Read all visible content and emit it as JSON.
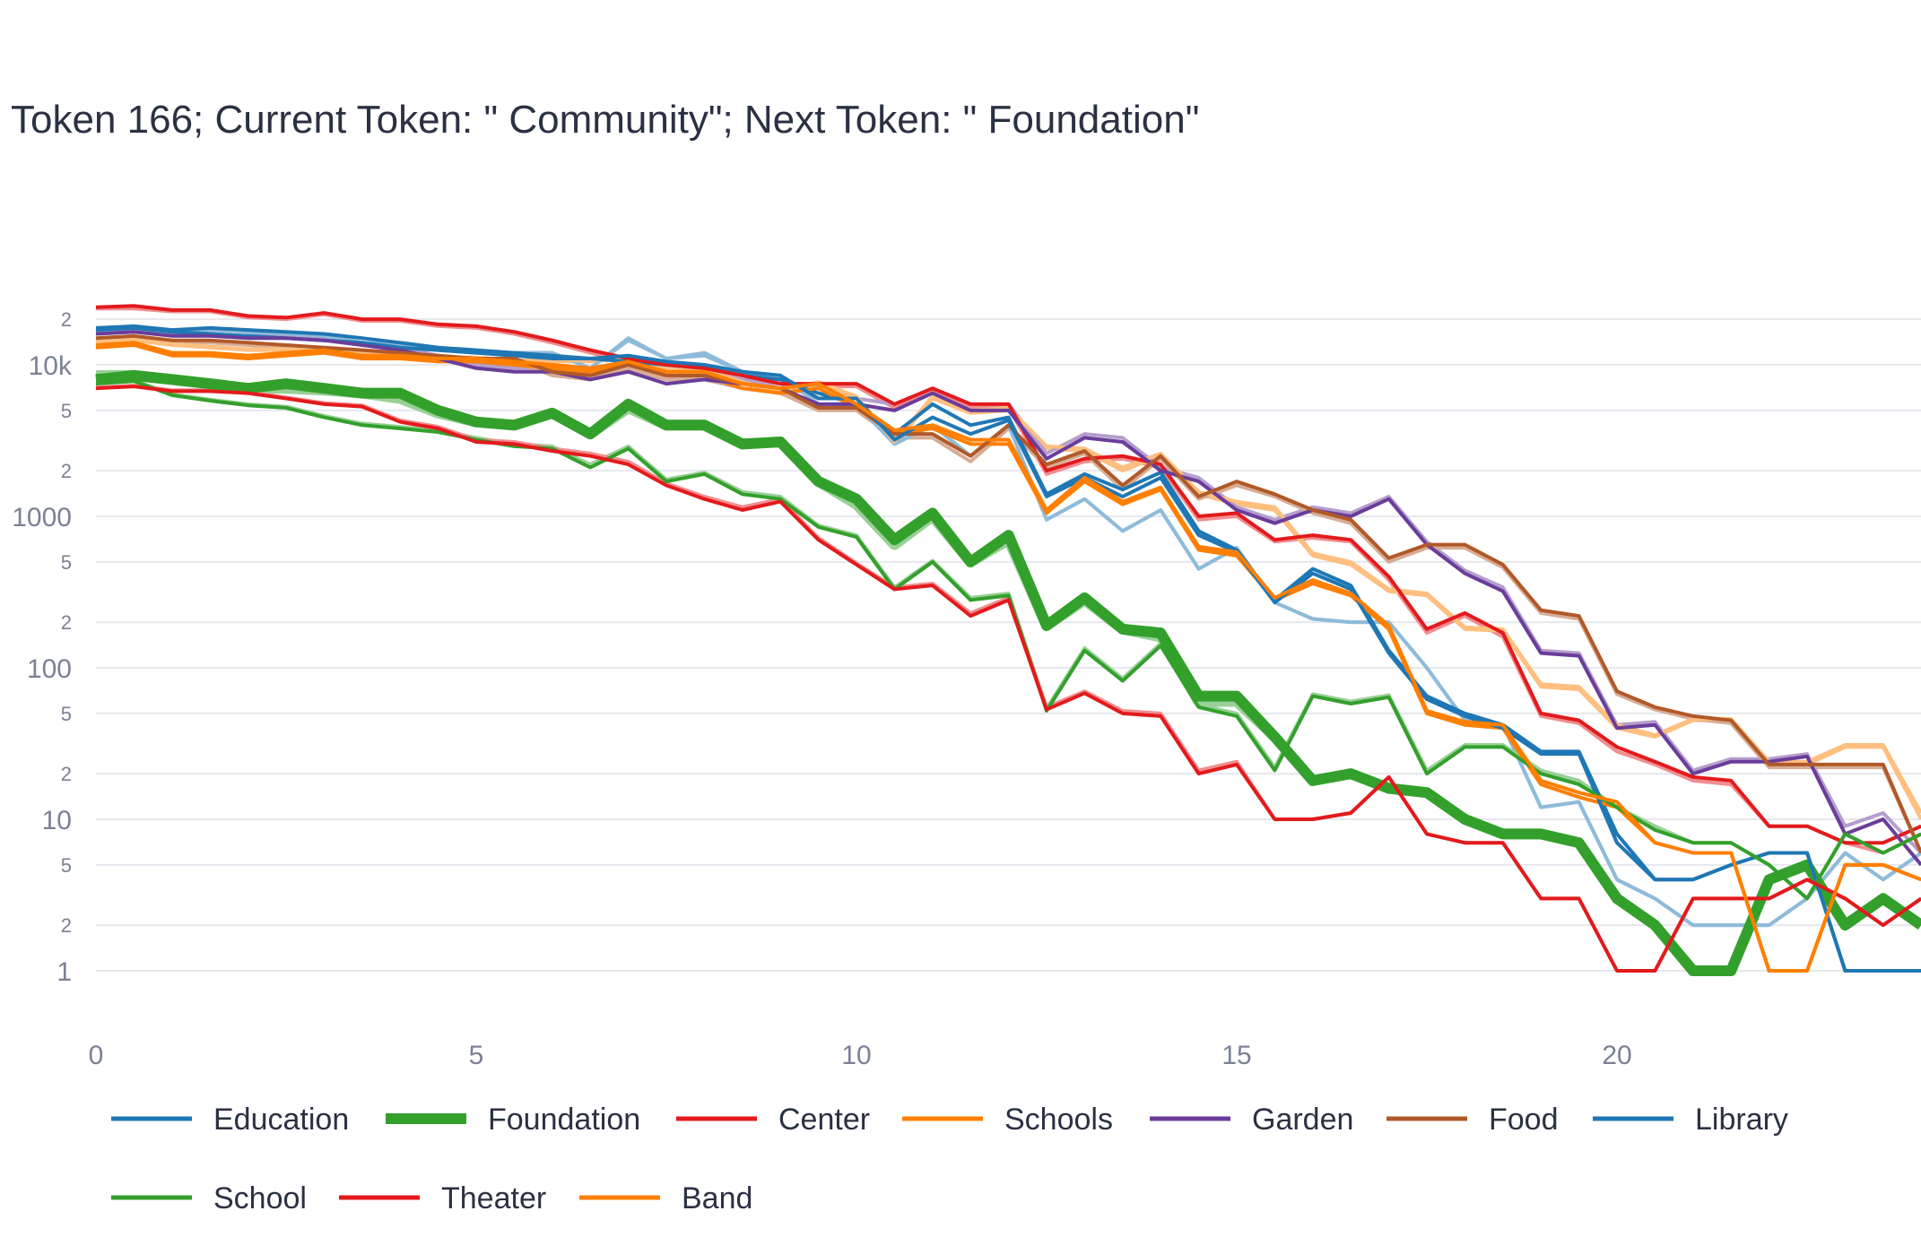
{
  "chart_data": {
    "type": "line",
    "title": "Token 166; Current Token: \" Community\"; Next Token: \" Foundation\"",
    "xlabel": "",
    "ylabel": "",
    "y_scale": "log",
    "ylim": [
      0.6,
      40000
    ],
    "xlim": [
      0,
      24
    ],
    "x_ticks": [
      "0",
      "5",
      "10",
      "15",
      "20"
    ],
    "y_major_ticks": [
      "1",
      "10",
      "100",
      "1000",
      "10k"
    ],
    "y_minor_ticks": [
      "2",
      "5"
    ],
    "grid": true,
    "legend_position": "bottom",
    "x": [
      0,
      0.5,
      1,
      1.5,
      2,
      2.5,
      3,
      3.5,
      4,
      4.5,
      5,
      5.5,
      6,
      6.5,
      7,
      7.5,
      8,
      8.5,
      9,
      9.5,
      10,
      10.5,
      11,
      11.5,
      12,
      12.5,
      13,
      13.5,
      14,
      14.5,
      15,
      15.5,
      16,
      16.5,
      17,
      17.5,
      18,
      18.5,
      19,
      19.5,
      20,
      20.5,
      21,
      21.5,
      22,
      22.5,
      23,
      23.5,
      24
    ],
    "series": [
      {
        "name": "Education",
        "color": "#1f77b4",
        "width": 4,
        "values": [
          [
            17000,
            17500,
            16500,
            16000,
            15500,
            15000,
            14500,
            14000,
            13000,
            12500,
            12000,
            11500,
            11000,
            11000,
            10500,
            10000,
            9500,
            8500,
            8000,
            6500,
            5500,
            3500,
            5500,
            4000,
            4500,
            1400,
            1900,
            1500,
            1950,
            800,
            600,
            280,
            450,
            350,
            130,
            65,
            50,
            42,
            28,
            28,
            8,
            4,
            4,
            5,
            6,
            6,
            1,
            1,
            1
          ],
          [
            16000,
            16500,
            16000,
            17000,
            16500,
            16000,
            15500,
            14000,
            13500,
            12500,
            12000,
            12000,
            12000,
            9500,
            15000,
            11000,
            12000,
            9000,
            8500,
            5500,
            5500,
            3000,
            4000,
            2500,
            4000,
            950,
            1300,
            800,
            1100,
            450,
            620,
            270,
            210,
            200,
            200,
            100,
            45,
            42,
            12,
            13,
            4,
            3,
            2,
            2,
            2,
            3,
            6,
            4,
            6
          ]
        ]
      },
      {
        "name": "Foundation",
        "color": "#33a02c",
        "width": 12,
        "values": [
          [
            8000,
            8500,
            8000,
            7500,
            7000,
            7500,
            7000,
            6500,
            6500,
            5000,
            4200,
            4000,
            4800,
            3500,
            5500,
            4000,
            4000,
            3000,
            3100,
            1700,
            1300,
            700,
            1050,
            500,
            750,
            190,
            290,
            180,
            170,
            65,
            65,
            35,
            18,
            20,
            16,
            15,
            10,
            8,
            8,
            7,
            3,
            2,
            1,
            1,
            4,
            5,
            2,
            3,
            2
          ],
          [
            8500,
            8500,
            8000,
            7500,
            7000,
            7000,
            6800,
            6500,
            6000,
            4800,
            4200,
            4000,
            4800,
            3500,
            5200,
            4000,
            4000,
            3000,
            3100,
            1700,
            1200,
            650,
            1000,
            500,
            700,
            190,
            280,
            180,
            160,
            60,
            60,
            35,
            18,
            20,
            16,
            15,
            10,
            8,
            8,
            7,
            3,
            2,
            1,
            1,
            4,
            5,
            2,
            3,
            2
          ]
        ]
      },
      {
        "name": "Center",
        "color": "#e31a1c",
        "width": 4,
        "values": [
          [
            24000,
            24500,
            23000,
            23000,
            21000,
            20500,
            22000,
            20000,
            20000,
            18500,
            18000,
            16500,
            14500,
            12500,
            11000,
            10000,
            9500,
            8500,
            7500,
            7500,
            7500,
            5500,
            7000,
            5500,
            5500,
            2000,
            2400,
            2500,
            2200,
            1000,
            1050,
            700,
            750,
            700,
            400,
            180,
            230,
            170,
            50,
            45,
            30,
            24,
            19,
            18,
            9,
            9,
            7,
            7,
            9
          ],
          [
            23500,
            23500,
            22500,
            22500,
            20500,
            20000,
            21500,
            19500,
            19500,
            18000,
            17500,
            16000,
            14000,
            12000,
            10500,
            9500,
            9000,
            8000,
            7000,
            7200,
            7200,
            5200,
            6800,
            5200,
            5200,
            1900,
            2300,
            2400,
            2100,
            950,
            1000,
            680,
            720,
            680,
            380,
            170,
            220,
            160,
            48,
            43,
            28,
            23,
            18,
            17,
            9,
            9,
            7,
            6,
            8
          ]
        ]
      },
      {
        "name": "Schools",
        "color": "#ff7f00",
        "width": 4,
        "values": [
          [
            13000,
            13500,
            11500,
            11500,
            11000,
            11500,
            12000,
            11000,
            11000,
            10500,
            10500,
            10000,
            9500,
            9000,
            10000,
            8500,
            8500,
            7000,
            6500,
            7000,
            5200,
            3500,
            3800,
            3000,
            3000,
            1050,
            1700,
            1200,
            1500,
            600,
            550,
            280,
            360,
            300,
            180,
            50,
            42,
            40,
            17,
            14,
            12,
            7,
            6,
            6,
            1,
            1,
            5,
            5,
            4
          ],
          [
            14000,
            14500,
            13500,
            13000,
            12500,
            12500,
            12500,
            12000,
            11500,
            11000,
            11000,
            10500,
            10500,
            10500,
            11000,
            9500,
            9000,
            7500,
            6500,
            7500,
            6000,
            3000,
            6000,
            4800,
            5000,
            2800,
            2700,
            2000,
            2500,
            1400,
            1200,
            1100,
            550,
            480,
            320,
            300,
            180,
            175,
            75,
            72,
            40,
            35,
            45,
            45,
            24,
            23,
            30,
            30,
            10
          ]
        ]
      },
      {
        "name": "Garden",
        "color": "#6a3d9a",
        "width": 4,
        "values": [
          [
            16000,
            16500,
            15500,
            15500,
            15000,
            15000,
            14500,
            13500,
            12500,
            11000,
            9500,
            9000,
            9000,
            8000,
            9000,
            7500,
            8000,
            7500,
            7000,
            5500,
            5500,
            5000,
            6500,
            5000,
            5000,
            2400,
            3300,
            3100,
            2000,
            1700,
            1100,
            900,
            1100,
            1000,
            1300,
            650,
            420,
            320,
            125,
            120,
            40,
            42,
            20,
            24,
            24,
            26,
            8,
            10,
            5
          ],
          [
            16500,
            17000,
            16000,
            16000,
            15500,
            15500,
            15000,
            14000,
            13000,
            11500,
            10000,
            9500,
            9500,
            8500,
            9500,
            8000,
            8500,
            8000,
            7500,
            6000,
            6000,
            5500,
            7000,
            5500,
            5500,
            2600,
            3500,
            3300,
            2100,
            1800,
            1150,
            950,
            1150,
            1050,
            1350,
            680,
            440,
            340,
            130,
            125,
            42,
            44,
            21,
            25,
            25,
            27,
            9,
            11,
            6
          ]
        ]
      },
      {
        "name": "Food",
        "color": "#b15928",
        "width": 4,
        "values": [
          [
            15000,
            15500,
            14500,
            14500,
            14000,
            13500,
            13000,
            12500,
            12000,
            11500,
            11000,
            11000,
            9000,
            8500,
            10000,
            8500,
            8500,
            7500,
            7000,
            5200,
            5200,
            3500,
            3500,
            2500,
            4000,
            2200,
            2700,
            1600,
            2500,
            1350,
            1700,
            1400,
            1100,
            950,
            530,
            650,
            650,
            480,
            240,
            220,
            70,
            55,
            48,
            45,
            23,
            23,
            23,
            23,
            6
          ],
          [
            14500,
            15000,
            14000,
            14000,
            13500,
            13000,
            12500,
            12000,
            11500,
            11000,
            10500,
            10500,
            8500,
            8000,
            9500,
            8000,
            8000,
            7000,
            6500,
            5000,
            5000,
            3300,
            3300,
            2300,
            3800,
            2100,
            2600,
            1500,
            2400,
            1300,
            1600,
            1350,
            1050,
            900,
            500,
            620,
            620,
            460,
            230,
            210,
            67,
            53,
            46,
            43,
            22,
            22,
            22,
            22,
            6
          ]
        ]
      },
      {
        "name": "Library",
        "color": "#1f77b4",
        "width": 4,
        "values": [
          [
            17500,
            18000,
            17000,
            17500,
            17000,
            16500,
            16000,
            15000,
            14000,
            13000,
            12500,
            12000,
            11500,
            11000,
            11500,
            10500,
            10000,
            9000,
            8500,
            6000,
            6000,
            3200,
            4500,
            3500,
            4300,
            1350,
            1800,
            1350,
            1800,
            750,
            580,
            270,
            420,
            330,
            125,
            62,
            48,
            40,
            27,
            27,
            7,
            4,
            4,
            5,
            6,
            6,
            1,
            1,
            1
          ],
          [
            16500,
            17000,
            16500,
            17000,
            16500,
            16000,
            15500,
            14000,
            13500,
            12500,
            12000,
            12000,
            12000,
            9500,
            14500,
            11000,
            11500,
            9000,
            8500,
            5500,
            5500,
            3000,
            4000,
            2500,
            4000,
            950,
            1300,
            800,
            1100,
            450,
            620,
            270,
            210,
            200,
            200,
            100,
            45,
            42,
            12,
            13,
            4,
            3,
            2,
            2,
            2,
            3,
            6,
            4,
            6
          ]
        ]
      },
      {
        "name": "School",
        "color": "#33a02c",
        "width": 4,
        "values": [
          [
            7500,
            7800,
            6300,
            5800,
            5400,
            5200,
            4500,
            4000,
            3800,
            3600,
            3200,
            2900,
            2800,
            2100,
            2800,
            1700,
            1900,
            1400,
            1300,
            850,
            730,
            330,
            500,
            280,
            300,
            52,
            130,
            82,
            140,
            55,
            48,
            21,
            65,
            58,
            64,
            20,
            30,
            30,
            20,
            17,
            12,
            8.5,
            7,
            7,
            5,
            3,
            8,
            6,
            8
          ],
          [
            7600,
            7900,
            6400,
            5900,
            5500,
            5300,
            4600,
            4100,
            3900,
            3700,
            3300,
            3000,
            2900,
            2200,
            2900,
            1750,
            1950,
            1450,
            1350,
            870,
            750,
            340,
            510,
            290,
            310,
            54,
            135,
            85,
            145,
            57,
            50,
            22,
            67,
            60,
            66,
            21,
            31,
            31,
            21,
            18,
            12,
            9,
            7,
            7,
            5,
            3,
            8,
            6,
            8
          ]
        ]
      },
      {
        "name": "Theater",
        "color": "#e31a1c",
        "width": 4,
        "values": [
          [
            7000,
            7200,
            6700,
            6700,
            6500,
            6000,
            5500,
            5300,
            4200,
            3800,
            3100,
            3000,
            2700,
            2500,
            2200,
            1600,
            1300,
            1100,
            1250,
            700,
            480,
            330,
            350,
            220,
            280,
            53,
            68,
            50,
            48,
            20,
            23,
            10,
            10,
            11,
            19,
            8,
            7,
            7,
            3,
            3,
            1,
            1,
            3,
            3,
            3,
            4,
            3,
            2,
            3
          ],
          [
            7100,
            7300,
            6800,
            6800,
            6600,
            6100,
            5600,
            5400,
            4300,
            3900,
            3200,
            3100,
            2800,
            2600,
            2300,
            1650,
            1350,
            1150,
            1300,
            720,
            490,
            340,
            360,
            230,
            290,
            55,
            70,
            52,
            50,
            21,
            24,
            10,
            10,
            11,
            19,
            8,
            7,
            7,
            3,
            3,
            1,
            1,
            3,
            3,
            3,
            4,
            3,
            2,
            3
          ]
        ]
      },
      {
        "name": "Band",
        "color": "#ff7f00",
        "width": 4,
        "values": [
          [
            13500,
            14000,
            12000,
            12000,
            11500,
            12000,
            12500,
            11500,
            11500,
            11000,
            11000,
            10500,
            10000,
            9500,
            10500,
            9000,
            9000,
            7500,
            7000,
            7500,
            5500,
            3700,
            4000,
            3200,
            3200,
            1100,
            1800,
            1250,
            1550,
            630,
            580,
            290,
            380,
            310,
            190,
            52,
            44,
            42,
            18,
            15,
            13,
            7,
            6,
            6,
            1,
            1,
            5,
            5,
            4
          ],
          [
            14200,
            14700,
            13700,
            13200,
            12700,
            12700,
            12700,
            12200,
            11700,
            11200,
            11200,
            10700,
            10700,
            10700,
            11200,
            9700,
            9200,
            7700,
            6700,
            7700,
            6200,
            3100,
            6200,
            5000,
            5200,
            2900,
            2800,
            2100,
            2600,
            1450,
            1250,
            1150,
            570,
            500,
            330,
            310,
            185,
            180,
            78,
            75,
            42,
            36,
            46,
            46,
            24,
            24,
            31,
            31,
            11
          ]
        ]
      }
    ]
  }
}
